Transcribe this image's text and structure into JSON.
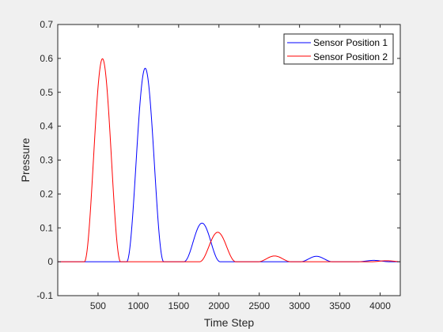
{
  "chart_data": {
    "type": "line",
    "title": "",
    "xlabel": "Time Step",
    "ylabel": "Pressure",
    "xlim": [
      0,
      4250
    ],
    "ylim": [
      -0.1,
      0.7
    ],
    "xticks": [
      500,
      1000,
      1500,
      2000,
      2500,
      3000,
      3500,
      4000
    ],
    "yticks": [
      -0.1,
      0,
      0.1,
      0.2,
      0.3,
      0.4,
      0.5,
      0.6,
      0.7
    ],
    "xtick_labels": [
      "500",
      "1000",
      "1500",
      "2000",
      "2500",
      "3000",
      "3500",
      "4000"
    ],
    "ytick_labels": [
      "-0.1",
      "0",
      "0.1",
      "0.2",
      "0.3",
      "0.4",
      "0.5",
      "0.6",
      "0.7"
    ],
    "grid": false,
    "legend_position": "top-right",
    "series": [
      {
        "name": "Sensor Position 1",
        "color": "#0000ff",
        "pulses": [
          {
            "center": 1085,
            "half_width": 230,
            "peak": 0.571
          },
          {
            "center": 1790,
            "half_width": 225,
            "peak": 0.114
          },
          {
            "center": 3210,
            "half_width": 200,
            "peak": 0.016
          },
          {
            "center": 3920,
            "half_width": 200,
            "peak": 0.004
          }
        ]
      },
      {
        "name": "Sensor Position 2",
        "color": "#ff0000",
        "pulses": [
          {
            "center": 555,
            "half_width": 225,
            "peak": 0.599
          },
          {
            "center": 1985,
            "half_width": 225,
            "peak": 0.087
          },
          {
            "center": 2690,
            "half_width": 205,
            "peak": 0.017
          },
          {
            "center": 4080,
            "half_width": 190,
            "peak": 0.003
          }
        ]
      }
    ]
  }
}
